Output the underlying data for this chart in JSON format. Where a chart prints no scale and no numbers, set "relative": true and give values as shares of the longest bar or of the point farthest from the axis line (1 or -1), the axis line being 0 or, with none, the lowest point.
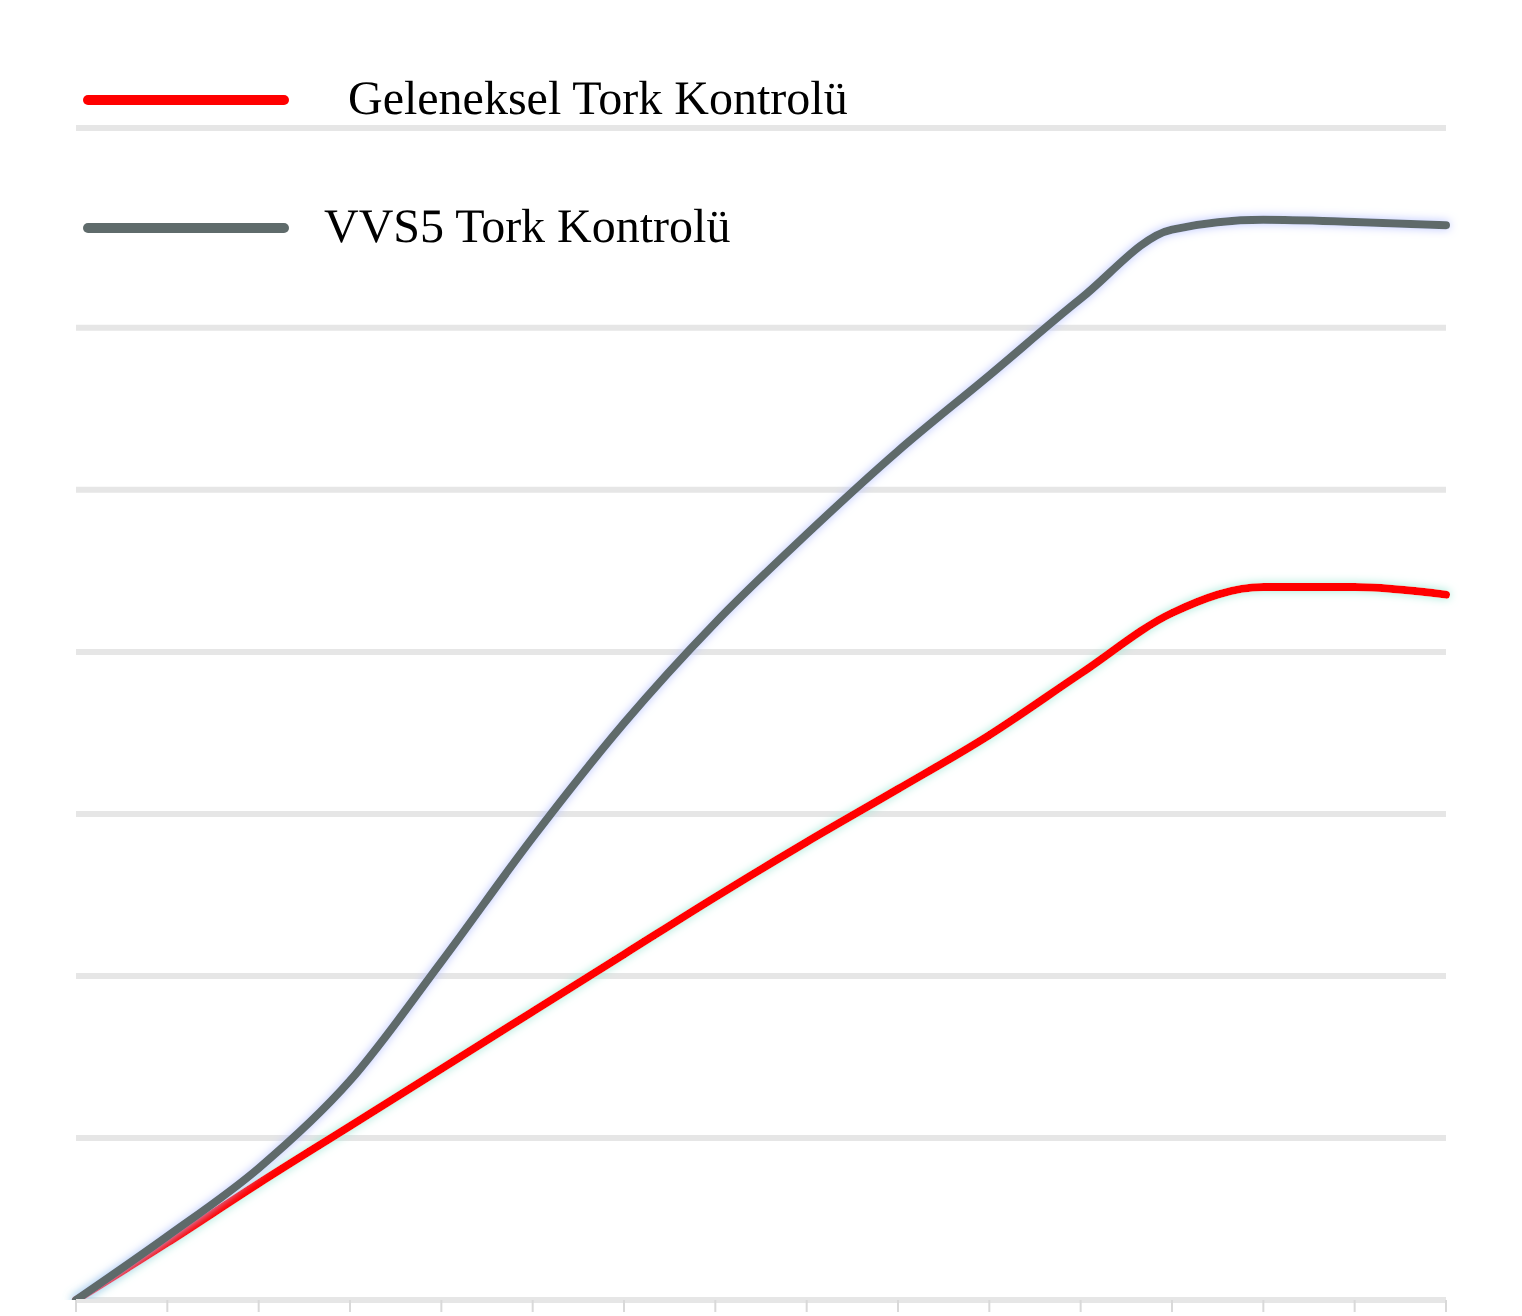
{
  "chart_data": {
    "type": "line",
    "relative": true,
    "categories": [
      null,
      null,
      null,
      null,
      null,
      null,
      null,
      null,
      null,
      null,
      null,
      null,
      null,
      null,
      null,
      null
    ],
    "series": [
      {
        "name": "Geleneksel Tork Kontrolü",
        "color": "#ff0000",
        "values": [
          0,
          0.053,
          0.108,
          0.161,
          0.214,
          0.267,
          0.32,
          0.373,
          0.424,
          0.473,
          0.523,
          0.58,
          0.636,
          0.66,
          0.66,
          0.653
        ]
      },
      {
        "name": "VVS5 Tork Kontrolü",
        "color": "#5f6b6b",
        "values": [
          0,
          0.059,
          0.122,
          0.203,
          0.313,
          0.428,
          0.534,
          0.627,
          0.709,
          0.786,
          0.856,
          0.927,
          0.991,
          1.0,
          0.998,
          0.995
        ]
      }
    ],
    "grid": "y",
    "legend": "top left",
    "marker": "none",
    "line_style": "solid"
  }
}
